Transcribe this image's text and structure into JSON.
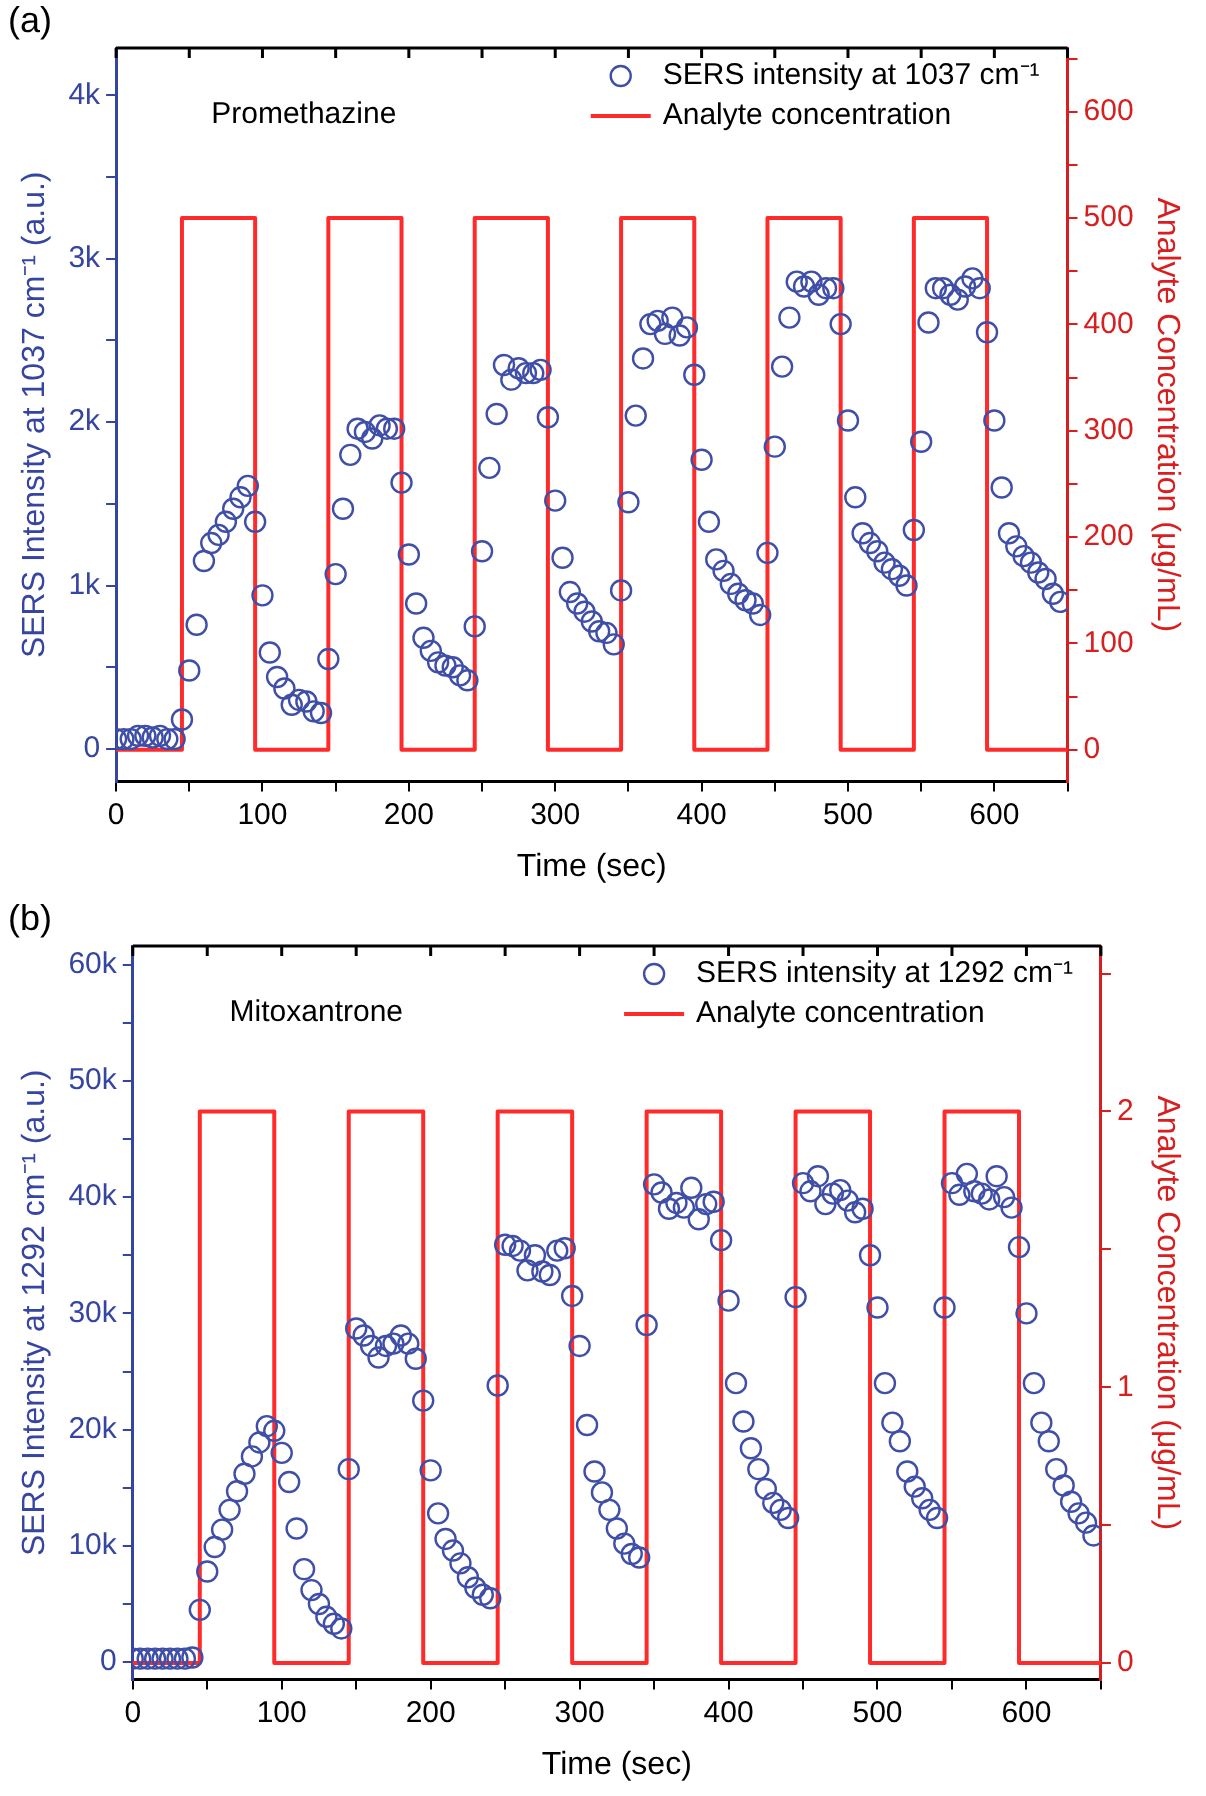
{
  "chart_data": [
    {
      "type": "scatter",
      "xlabel": "Time (sec)",
      "ylabel": "SERS Intensity at 1037 cm⁻¹ (a.u.)",
      "y2label": "Analyte Concentration (μg/mL)",
      "annotations": [
        "(a)",
        "Promethazine"
      ],
      "legend": "top right",
      "xlim": [
        0,
        650
      ],
      "xticks": [
        0,
        {
          "value": 50,
          "label": null
        },
        100,
        {
          "value": 150,
          "label": null
        },
        200,
        {
          "value": 250,
          "label": null
        },
        300,
        {
          "value": 350,
          "label": null
        },
        400,
        {
          "value": 450,
          "label": null
        },
        500,
        {
          "value": 550,
          "label": null
        },
        600,
        {
          "value": 650,
          "label": null
        }
      ],
      "ylim": [
        -200,
        4290
      ],
      "yticks": [
        0,
        {
          "value": 500,
          "label": null
        },
        {
          "value": 1000,
          "label": "1k"
        },
        {
          "value": 1500,
          "label": null
        },
        {
          "value": 2000,
          "label": "2k"
        },
        {
          "value": 2500,
          "label": null
        },
        {
          "value": 3000,
          "label": "3k"
        },
        {
          "value": 3500,
          "label": null
        },
        {
          "value": 4000,
          "label": "4k"
        }
      ],
      "y2lim": [
        -30,
        660
      ],
      "y2ticks": [
        0,
        {
          "value": 50,
          "label": null
        },
        100,
        {
          "value": 150,
          "label": null
        },
        200,
        {
          "value": 250,
          "label": null
        },
        300,
        {
          "value": 350,
          "label": null
        },
        400,
        {
          "value": 450,
          "label": null
        },
        500,
        {
          "value": 550,
          "label": null
        },
        600,
        {
          "value": 650,
          "label": null
        }
      ],
      "x": [
        0,
        5,
        10,
        15,
        20,
        25,
        30,
        35,
        40,
        45,
        50,
        55,
        60,
        65,
        70,
        75,
        80,
        85,
        90,
        95,
        100,
        105,
        110,
        115,
        120,
        125,
        130,
        135,
        140,
        145,
        150,
        155,
        160,
        165,
        170,
        175,
        180,
        185,
        190,
        195,
        200,
        205,
        210,
        215,
        220,
        225,
        230,
        235,
        240,
        245,
        250,
        255,
        260,
        265,
        270,
        275,
        280,
        285,
        290,
        295,
        300,
        305,
        310,
        315,
        320,
        325,
        330,
        335,
        340,
        345,
        350,
        355,
        360,
        365,
        370,
        375,
        380,
        385,
        390,
        395,
        400,
        405,
        410,
        415,
        420,
        425,
        430,
        435,
        440,
        445,
        450,
        455,
        460,
        465,
        470,
        475,
        480,
        485,
        490,
        495,
        500,
        505,
        510,
        515,
        520,
        525,
        530,
        535,
        540,
        545,
        550,
        555,
        560,
        565,
        570,
        575,
        580,
        585,
        590,
        595,
        600,
        605,
        610,
        615,
        620,
        625,
        630,
        635,
        640,
        645
      ],
      "series": [
        {
          "name": "SERS intensity at 1037 cm⁻¹",
          "type": "scatter",
          "marker": "circle",
          "color": "#3f4fa8",
          "values": [
            60,
            60,
            60,
            80,
            80,
            70,
            80,
            60,
            60,
            180,
            480,
            760,
            1150,
            1260,
            1310,
            1390,
            1470,
            1540,
            1610,
            1390,
            940,
            590,
            440,
            370,
            270,
            300,
            290,
            230,
            220,
            550,
            1070,
            1470,
            1800,
            1960,
            1940,
            1900,
            1980,
            1960,
            1960,
            1630,
            1190,
            890,
            680,
            600,
            530,
            510,
            500,
            450,
            420,
            750,
            1210,
            1720,
            2050,
            2350,
            2260,
            2330,
            2300,
            2300,
            2320,
            2030,
            1520,
            1170,
            960,
            890,
            840,
            780,
            720,
            710,
            640,
            970,
            1510,
            2040,
            2390,
            2600,
            2620,
            2540,
            2640,
            2530,
            2580,
            2290,
            1770,
            1390,
            1160,
            1090,
            1010,
            950,
            910,
            890,
            820,
            1200,
            1850,
            2340,
            2640,
            2860,
            2830,
            2860,
            2780,
            2820,
            2820,
            2600,
            2010,
            1540,
            1320,
            1260,
            1210,
            1140,
            1100,
            1060,
            1000,
            1340,
            1880,
            2610,
            2820,
            2820,
            2780,
            2750,
            2830,
            2880,
            2820,
            2550,
            2010,
            1600,
            1320,
            1240,
            1180,
            1140,
            1080,
            1040,
            950,
            900
          ]
        },
        {
          "name": "Analyte concentration",
          "type": "line",
          "axis": "y2",
          "color": "#ff2a2a",
          "x": [
            0,
            45,
            45,
            95,
            95,
            145,
            145,
            195,
            195,
            245,
            245,
            295,
            295,
            345,
            345,
            395,
            395,
            445,
            445,
            495,
            495,
            545,
            545,
            595,
            595,
            650
          ],
          "values": [
            0,
            0,
            500,
            500,
            0,
            0,
            500,
            500,
            0,
            0,
            500,
            500,
            0,
            0,
            500,
            500,
            0,
            0,
            500,
            500,
            0,
            0,
            500,
            500,
            0,
            0
          ]
        }
      ]
    },
    {
      "type": "scatter",
      "xlabel": "Time (sec)",
      "ylabel": "SERS Intensity at 1292 cm⁻¹ (a.u.)",
      "y2label": "Analyte Concentration (μg/mL)",
      "annotations": [
        "(b)",
        "Mitoxantrone"
      ],
      "legend": "top right",
      "xlim": [
        0,
        650
      ],
      "xticks": [
        0,
        {
          "value": 50,
          "label": null
        },
        100,
        {
          "value": 150,
          "label": null
        },
        200,
        {
          "value": 250,
          "label": null
        },
        300,
        {
          "value": 350,
          "label": null
        },
        400,
        {
          "value": 450,
          "label": null
        },
        500,
        {
          "value": 550,
          "label": null
        },
        600,
        {
          "value": 650,
          "label": null
        }
      ],
      "ylim": [
        -1500,
        61600
      ],
      "yticks": [
        0,
        {
          "value": 5000,
          "label": null
        },
        {
          "value": 10000,
          "label": "10k"
        },
        {
          "value": 15000,
          "label": null
        },
        {
          "value": 20000,
          "label": "20k"
        },
        {
          "value": 25000,
          "label": null
        },
        {
          "value": 30000,
          "label": "30k"
        },
        {
          "value": 35000,
          "label": null
        },
        {
          "value": 40000,
          "label": "40k"
        },
        {
          "value": 45000,
          "label": null
        },
        {
          "value": 50000,
          "label": "50k"
        },
        {
          "value": 55000,
          "label": null
        },
        {
          "value": 60000,
          "label": "60k"
        }
      ],
      "y2lim": [
        -0.06,
        2.6
      ],
      "y2ticks": [
        0,
        {
          "value": 0.5,
          "label": null
        },
        1,
        {
          "value": 1.5,
          "label": null
        },
        2,
        {
          "value": 2.5,
          "label": null
        }
      ],
      "x": [
        0,
        5,
        10,
        15,
        20,
        25,
        30,
        35,
        40,
        45,
        50,
        55,
        60,
        65,
        70,
        75,
        80,
        85,
        90,
        95,
        100,
        105,
        110,
        115,
        120,
        125,
        130,
        135,
        140,
        145,
        150,
        155,
        160,
        165,
        170,
        175,
        180,
        185,
        190,
        195,
        200,
        205,
        210,
        215,
        220,
        225,
        230,
        235,
        240,
        245,
        250,
        255,
        260,
        265,
        270,
        275,
        280,
        285,
        290,
        295,
        300,
        305,
        310,
        315,
        320,
        325,
        330,
        335,
        340,
        345,
        350,
        355,
        360,
        365,
        370,
        375,
        380,
        385,
        390,
        395,
        400,
        405,
        410,
        415,
        420,
        425,
        430,
        435,
        440,
        445,
        450,
        455,
        460,
        465,
        470,
        475,
        480,
        485,
        490,
        495,
        500,
        505,
        510,
        515,
        520,
        525,
        530,
        535,
        540,
        545,
        550,
        555,
        560,
        565,
        570,
        575,
        580,
        585,
        590,
        595,
        600,
        605,
        610,
        615,
        620,
        625,
        630,
        635,
        640,
        645
      ],
      "series": [
        {
          "name": "SERS intensity at 1292 cm⁻¹",
          "type": "scatter",
          "marker": "circle",
          "color": "#3f4fa8",
          "values": [
            300,
            300,
            300,
            300,
            300,
            300,
            300,
            300,
            400,
            4500,
            7800,
            9900,
            11400,
            13100,
            14700,
            16200,
            17700,
            18900,
            20300,
            19900,
            18000,
            15500,
            11500,
            8000,
            6200,
            5000,
            3900,
            3300,
            2900,
            16600,
            28700,
            28100,
            27200,
            26200,
            27200,
            27400,
            28100,
            27400,
            26100,
            22500,
            16500,
            12800,
            10600,
            9600,
            8500,
            7300,
            6400,
            5800,
            5500,
            23800,
            35900,
            35800,
            35400,
            33700,
            35000,
            33600,
            33300,
            35400,
            35600,
            31500,
            27200,
            20400,
            16400,
            14600,
            13100,
            11500,
            10200,
            9300,
            9000,
            29000,
            41100,
            40400,
            39000,
            39500,
            39100,
            40800,
            38100,
            39400,
            39600,
            36300,
            31100,
            24000,
            20700,
            18400,
            16600,
            14900,
            13700,
            13100,
            12400,
            31400,
            41200,
            40500,
            41800,
            39400,
            40300,
            40600,
            39700,
            38700,
            39000,
            35000,
            30500,
            24000,
            20600,
            19000,
            16400,
            15100,
            14100,
            13100,
            12400,
            30500,
            41200,
            40200,
            42000,
            40500,
            40300,
            39800,
            41800,
            40000,
            39100,
            35700,
            30000,
            24000,
            20600,
            19000,
            16600,
            15200,
            13800,
            12800,
            12000,
            10900
          ]
        },
        {
          "name": "Analyte concentration",
          "type": "line",
          "axis": "y2",
          "color": "#ff2a2a",
          "x": [
            0,
            45,
            45,
            95,
            95,
            145,
            145,
            195,
            195,
            245,
            245,
            295,
            295,
            345,
            345,
            395,
            395,
            445,
            445,
            495,
            495,
            545,
            545,
            595,
            595,
            650
          ],
          "values": [
            0,
            0,
            2,
            2,
            0,
            0,
            2,
            2,
            0,
            0,
            2,
            2,
            0,
            0,
            2,
            2,
            0,
            0,
            2,
            2,
            0,
            0,
            2,
            2,
            0,
            0
          ]
        }
      ]
    }
  ]
}
